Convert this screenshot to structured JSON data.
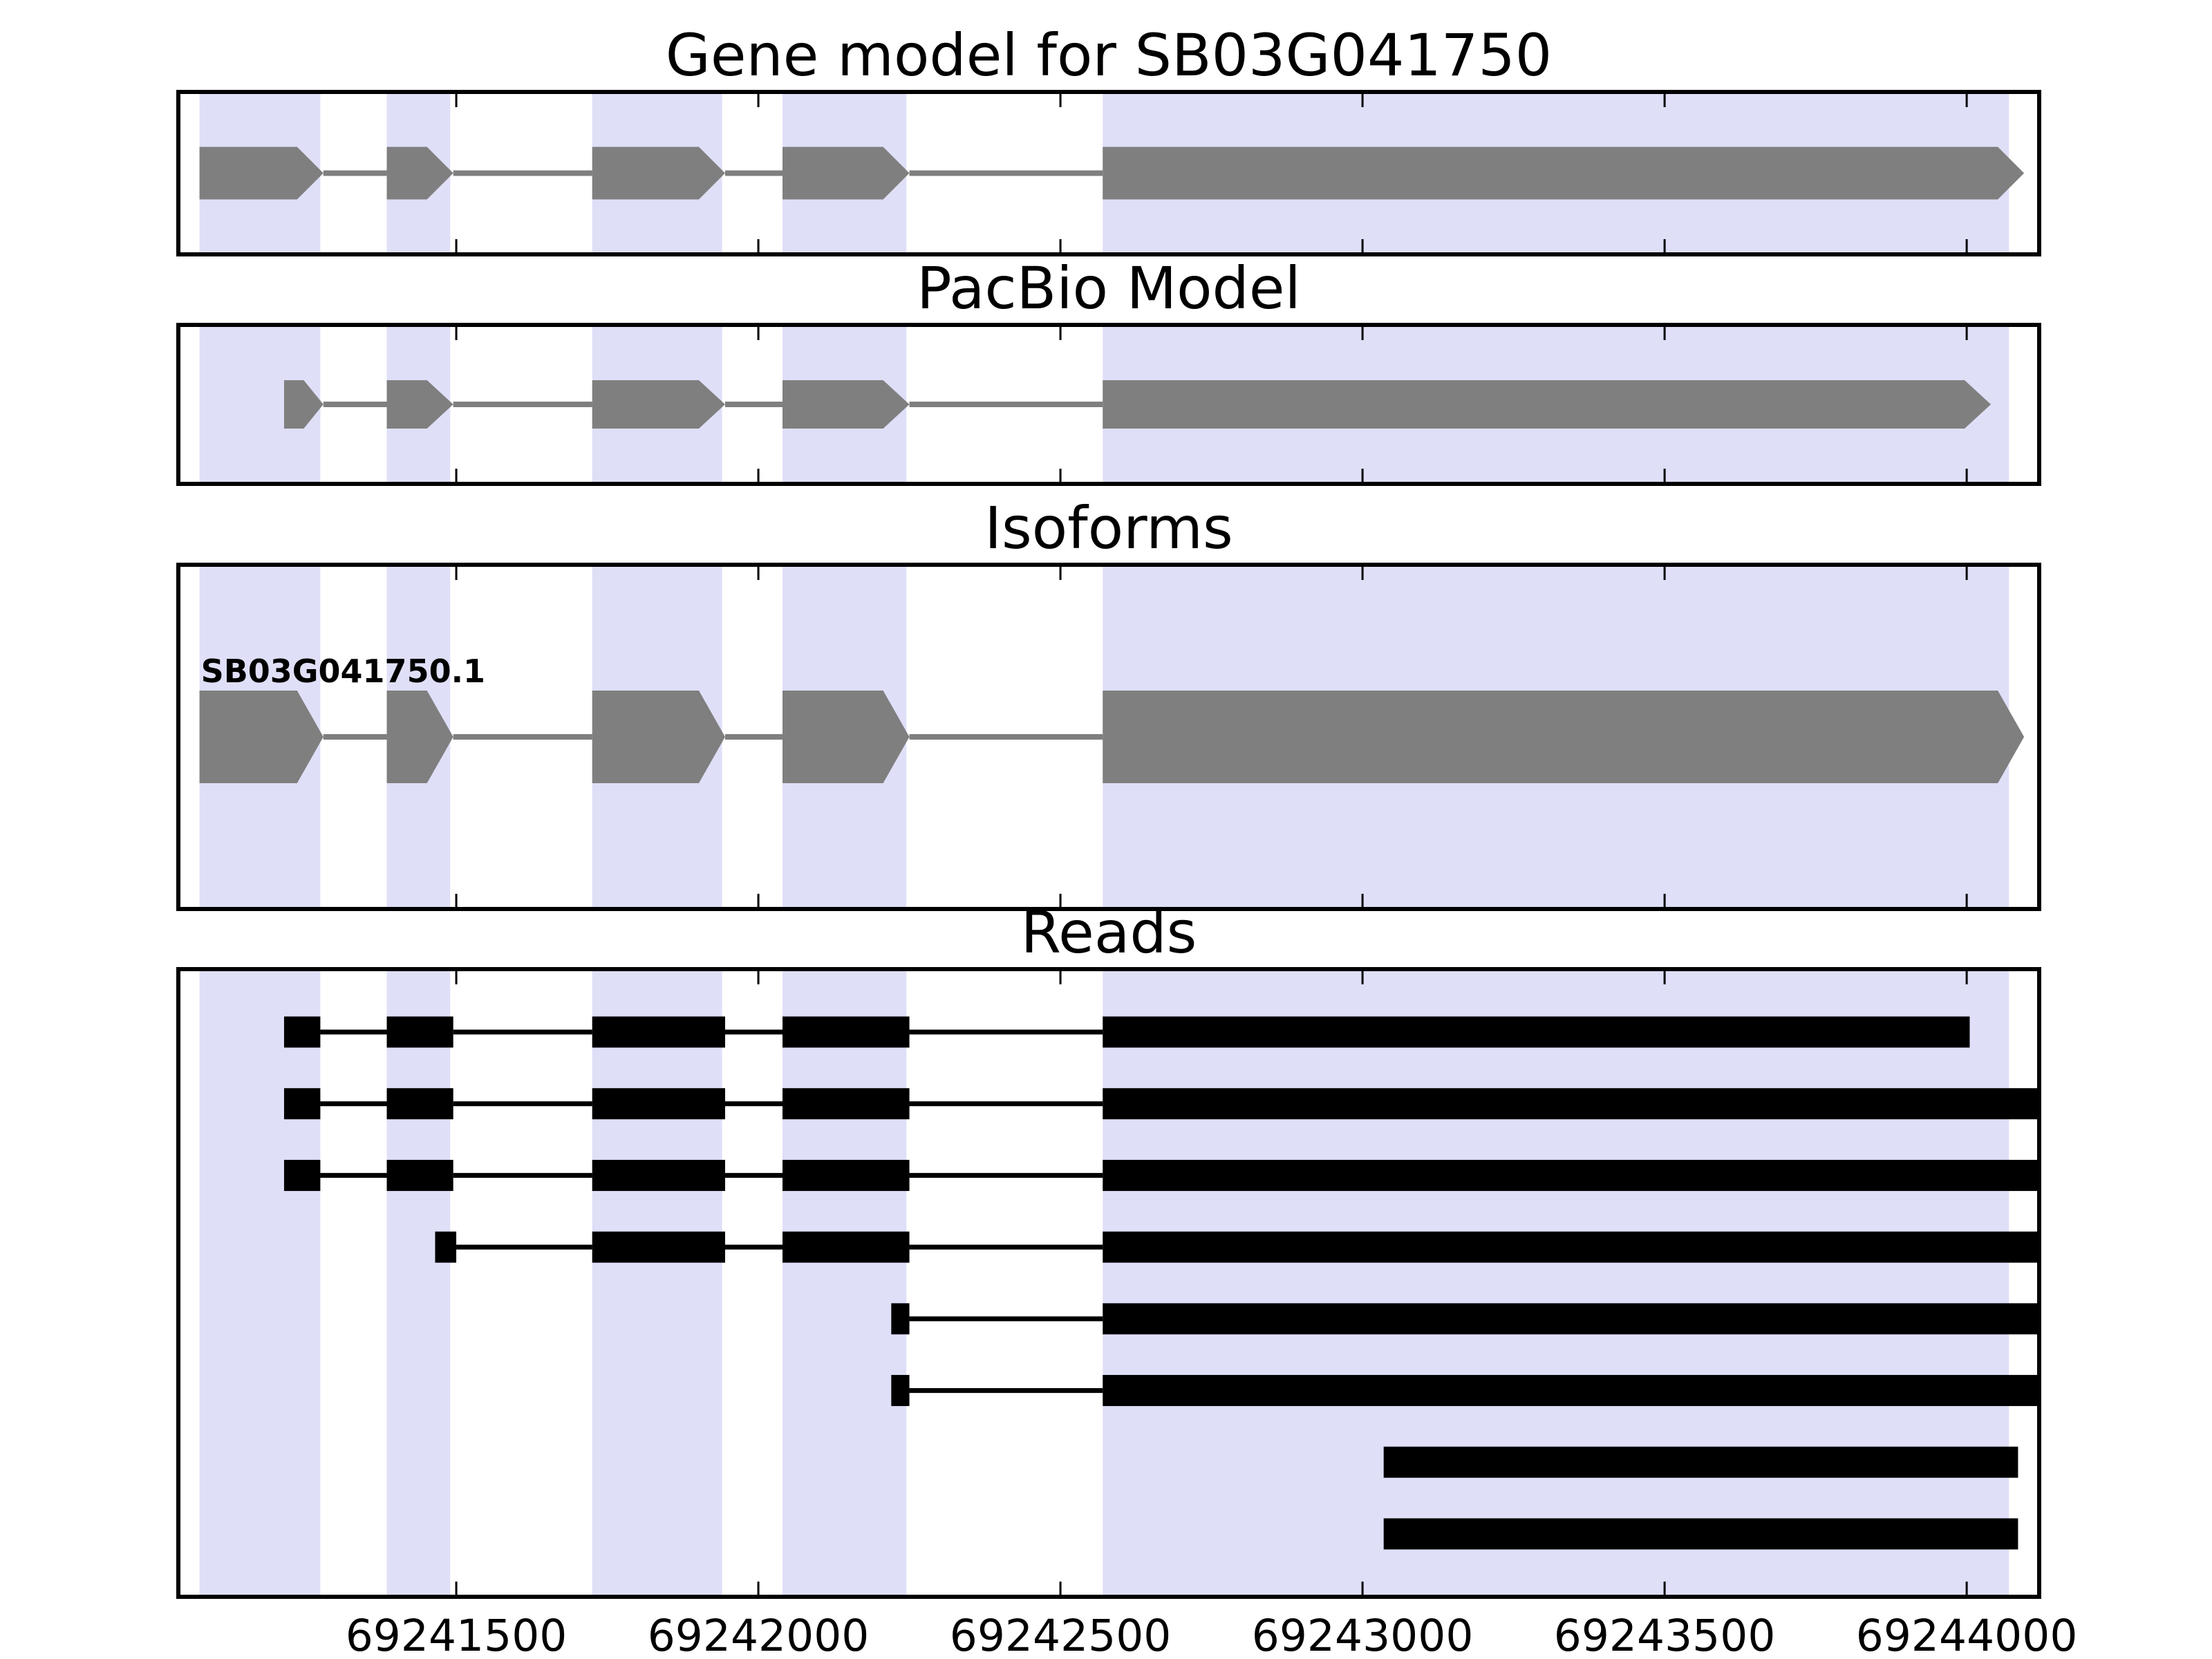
{
  "chart_data": {
    "type": "gene-model-tracks",
    "title": "Gene model for SB03G041750",
    "axis": {
      "domain": [
        69241040,
        69244120
      ],
      "ticks": [
        69241500,
        69242000,
        69242500,
        69243000,
        69243500,
        69244000
      ],
      "tick_labels": [
        "69241500",
        "69242000",
        "69242500",
        "69243000",
        "69243500",
        "69244000"
      ],
      "grid": false
    },
    "highlight_regions": [
      [
        69241075,
        69241275
      ],
      [
        69241385,
        69241490
      ],
      [
        69241725,
        69241940
      ],
      [
        69242040,
        69242245
      ],
      [
        69242570,
        69244070
      ]
    ],
    "panels": [
      {
        "title": "Gene model for SB03G041750",
        "kind": "model",
        "transcripts": [
          {
            "strand": "+",
            "exons": [
              [
                69241075,
                69241280
              ],
              [
                69241385,
                69241495
              ],
              [
                69241725,
                69241945
              ],
              [
                69242040,
                69242250
              ],
              [
                69242570,
                69244095
              ]
            ]
          }
        ]
      },
      {
        "title": "PacBio Model",
        "kind": "model",
        "transcripts": [
          {
            "strand": "+",
            "exons": [
              [
                69241215,
                69241280
              ],
              [
                69241385,
                69241495
              ],
              [
                69241725,
                69241945
              ],
              [
                69242040,
                69242250
              ],
              [
                69242570,
                69244040
              ]
            ]
          }
        ]
      },
      {
        "title": "Isoforms",
        "kind": "model",
        "label": "SB03G041750.1",
        "transcripts": [
          {
            "name": "SB03G041750.1",
            "strand": "+",
            "exons": [
              [
                69241075,
                69241280
              ],
              [
                69241385,
                69241495
              ],
              [
                69241725,
                69241945
              ],
              [
                69242040,
                69242250
              ],
              [
                69242570,
                69244095
              ]
            ]
          }
        ]
      },
      {
        "title": "Reads",
        "kind": "reads",
        "reads": [
          [
            [
              69241215,
              69241275
            ],
            [
              69241385,
              69241495
            ],
            [
              69241725,
              69241945
            ],
            [
              69242040,
              69242250
            ],
            [
              69242570,
              69244005
            ]
          ],
          [
            [
              69241215,
              69241275
            ],
            [
              69241385,
              69241495
            ],
            [
              69241725,
              69241945
            ],
            [
              69242040,
              69242250
            ],
            [
              69242570,
              69244120
            ]
          ],
          [
            [
              69241215,
              69241275
            ],
            [
              69241385,
              69241495
            ],
            [
              69241725,
              69241945
            ],
            [
              69242040,
              69242250
            ],
            [
              69242570,
              69244120
            ]
          ],
          [
            [
              69241465,
              69241500
            ],
            [
              69241725,
              69241945
            ],
            [
              69242040,
              69242250
            ],
            [
              69242570,
              69244120
            ]
          ],
          [
            [
              69242220,
              69242250
            ],
            [
              69242570,
              69244120
            ]
          ],
          [
            [
              69242220,
              69242250
            ],
            [
              69242570,
              69244120
            ]
          ],
          [
            [
              69243035,
              69244085
            ]
          ],
          [
            [
              69243035,
              69244085
            ]
          ]
        ]
      }
    ],
    "colors": {
      "exon": "#7f7f7f",
      "intron": "#7f7f7f",
      "read": "#000000",
      "highlight": "#dfdff8",
      "border": "#000000",
      "background": "#ffffff",
      "text": "#000000"
    }
  }
}
